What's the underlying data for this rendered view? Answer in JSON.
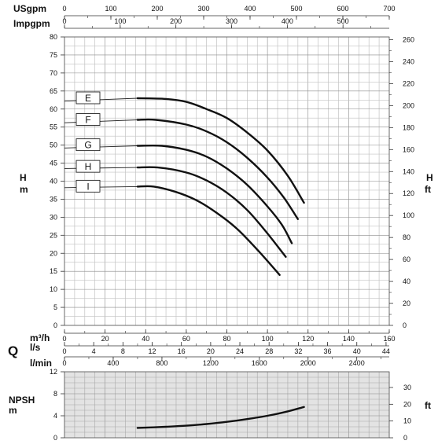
{
  "chart_data": [
    {
      "type": "line",
      "name": "head-curves",
      "y_left_label_top": "H",
      "y_left_label_bottom": "m",
      "y_right_label_top": "H",
      "y_right_label_bottom": "ft",
      "ylim": [
        0,
        80
      ],
      "yticks": [
        0,
        5,
        10,
        15,
        20,
        25,
        30,
        35,
        40,
        45,
        50,
        55,
        60,
        65,
        70,
        75,
        80
      ],
      "ylim_ft": [
        0,
        262.5
      ],
      "yticks_ft": [
        0,
        20,
        40,
        60,
        80,
        100,
        120,
        140,
        160,
        180,
        200,
        220,
        240,
        260
      ],
      "xlim": [
        0,
        160
      ],
      "grid": true,
      "series": [
        {
          "name": "E",
          "label_y": 63,
          "points": [
            [
              0,
              62.2
            ],
            [
              36,
              63.0
            ],
            [
              50,
              62.8
            ],
            [
              60,
              62.0
            ],
            [
              70,
              60.0
            ],
            [
              80,
              57.5
            ],
            [
              90,
              53.5
            ],
            [
              100,
              48.5
            ],
            [
              110,
              41.5
            ],
            [
              118,
              34.0
            ]
          ]
        },
        {
          "name": "F",
          "label_y": 57,
          "points": [
            [
              0,
              56.2
            ],
            [
              36,
              57.0
            ],
            [
              45,
              57.0
            ],
            [
              60,
              55.7
            ],
            [
              70,
              53.8
            ],
            [
              80,
              50.8
            ],
            [
              90,
              46.5
            ],
            [
              100,
              41.0
            ],
            [
              108,
              35.5
            ],
            [
              115,
              29.5
            ]
          ]
        },
        {
          "name": "G",
          "label_y": 50,
          "points": [
            [
              0,
              49.2
            ],
            [
              36,
              49.8
            ],
            [
              48,
              49.8
            ],
            [
              60,
              48.7
            ],
            [
              70,
              46.8
            ],
            [
              80,
              43.5
            ],
            [
              90,
              39.0
            ],
            [
              100,
              33.0
            ],
            [
              107,
              28.0
            ],
            [
              112,
              22.8
            ]
          ]
        },
        {
          "name": "H",
          "label_y": 44,
          "points": [
            [
              0,
              43.5
            ],
            [
              36,
              43.8
            ],
            [
              46,
              43.8
            ],
            [
              60,
              42.4
            ],
            [
              70,
              40.2
            ],
            [
              80,
              36.8
            ],
            [
              90,
              32.0
            ],
            [
              100,
              25.5
            ],
            [
              109,
              19.0
            ]
          ]
        },
        {
          "name": "I",
          "label_y": 38.5,
          "points": [
            [
              0,
              38.2
            ],
            [
              36,
              38.5
            ],
            [
              44,
              38.5
            ],
            [
              55,
              37.0
            ],
            [
              65,
              34.7
            ],
            [
              75,
              31.2
            ],
            [
              85,
              26.8
            ],
            [
              95,
              21.0
            ],
            [
              106,
              14.0
            ]
          ]
        }
      ]
    },
    {
      "type": "line",
      "name": "npsh-curve",
      "ylabel_top": "NPSH",
      "ylabel_bottom": "m",
      "ylabel_right": "ft",
      "ylim": [
        0,
        12
      ],
      "yticks": [
        0,
        4,
        8,
        12
      ],
      "yticks_ft": [
        0,
        10,
        20,
        30
      ],
      "xlim": [
        0,
        160
      ],
      "series": [
        {
          "name": "NPSH",
          "points": [
            [
              36,
              1.8
            ],
            [
              50,
              2.0
            ],
            [
              60,
              2.2
            ],
            [
              70,
              2.5
            ],
            [
              80,
              2.9
            ],
            [
              90,
              3.4
            ],
            [
              100,
              4.0
            ],
            [
              110,
              4.8
            ],
            [
              118,
              5.6
            ]
          ]
        }
      ]
    }
  ],
  "axes": {
    "usgpm": {
      "label": "USgpm",
      "max": 700,
      "ticks": [
        0,
        100,
        200,
        300,
        400,
        500,
        600,
        700
      ]
    },
    "impgpm": {
      "label": "Impgpm",
      "max": 583,
      "ticks": [
        0,
        100,
        200,
        300,
        400,
        500
      ]
    },
    "m3h": {
      "label": "m³/h",
      "max": 160,
      "ticks": [
        0,
        20,
        40,
        60,
        80,
        100,
        120,
        140,
        160
      ]
    },
    "ls": {
      "label": "l/s",
      "max": 44.44,
      "ticks": [
        0,
        4,
        8,
        12,
        16,
        20,
        24,
        28,
        32,
        36,
        40,
        44
      ]
    },
    "lmin": {
      "label": "l/min",
      "max": 2666.7,
      "ticks": [
        0,
        400,
        800,
        1200,
        1600,
        2000,
        2400
      ]
    },
    "q_symbol": "Q"
  }
}
